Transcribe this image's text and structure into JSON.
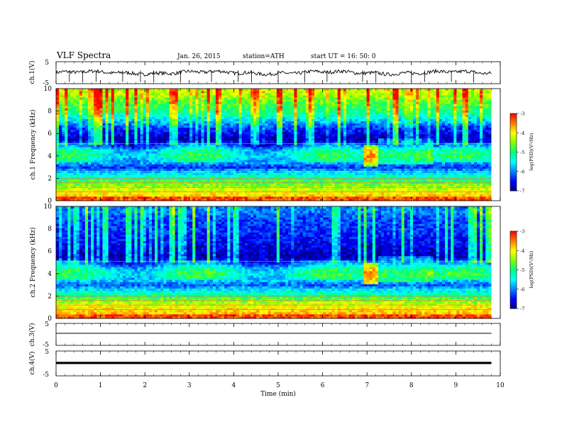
{
  "header": {
    "title": "VLF  Spectra",
    "date": "Jan. 26, 2015",
    "station": "station=ATH",
    "start": "start  UT  =   16: 50: 0"
  },
  "colors": {
    "waveform": "#000000",
    "colormap": [
      "#000080",
      "#0000ff",
      "#0080ff",
      "#00ffff",
      "#00ff80",
      "#80ff00",
      "#ffff00",
      "#ff8000",
      "#ff0000",
      "#ffffff"
    ]
  },
  "chart_data": [
    {
      "type": "line",
      "name": "ch1",
      "ylabel": "ch.1(V)",
      "ylim": [
        -5,
        5
      ],
      "yticklabels": [
        "5",
        "-5"
      ],
      "description_values": "broadband waveform around 0 V with sferic spikes",
      "spikes_t_min": [
        0.3,
        0.6,
        0.9,
        1.5,
        1.9,
        2.2,
        2.8,
        3.5,
        4.1,
        4.4,
        5.0,
        5.6,
        6.1,
        6.9,
        7.2,
        8.0,
        8.3,
        8.9,
        9.4
      ]
    },
    {
      "type": "heatmap",
      "name": "ch1-spectrogram",
      "ylabel": "ch.1  Frequency  (kHz)",
      "ylim": [
        0,
        10
      ],
      "yticks": [
        0,
        2,
        4,
        6,
        8,
        10
      ],
      "colorbar": {
        "label": "log(PSD)(V²/Hz)",
        "ticks": [
          "-3",
          "-4",
          "-5",
          "-6",
          "-7"
        ],
        "range": [
          -7,
          -3
        ]
      },
      "band_profile_khz": [
        {
          "f": 0.0,
          "v": -3.4
        },
        {
          "f": 0.5,
          "v": -3.9
        },
        {
          "f": 1.0,
          "v": -4.2
        },
        {
          "f": 1.5,
          "v": -4.6
        },
        {
          "f": 2.0,
          "v": -5.0
        },
        {
          "f": 2.5,
          "v": -5.6
        },
        {
          "f": 3.0,
          "v": -6.3
        },
        {
          "f": 3.5,
          "v": -5.7
        },
        {
          "f": 4.0,
          "v": -5.4
        },
        {
          "f": 4.5,
          "v": -5.6
        },
        {
          "f": 5.0,
          "v": -6.4
        },
        {
          "f": 5.5,
          "v": -6.8
        },
        {
          "f": 6.0,
          "v": -6.6
        },
        {
          "f": 6.5,
          "v": -6.3
        },
        {
          "f": 7.0,
          "v": -5.8
        },
        {
          "f": 7.5,
          "v": -5.4
        },
        {
          "f": 8.0,
          "v": -5.0
        },
        {
          "f": 8.5,
          "v": -4.8
        },
        {
          "f": 9.0,
          "v": -4.6
        },
        {
          "f": 9.5,
          "v": -4.3
        },
        {
          "f": 10.0,
          "v": -4.2
        }
      ],
      "event_t_min": 7.0,
      "hiss_center_khz": 4.2
    },
    {
      "type": "heatmap",
      "name": "ch2-spectrogram",
      "ylabel": "ch.2  Frequency  (kHz)",
      "ylim": [
        0,
        10
      ],
      "yticks": [
        0,
        2,
        4,
        6,
        8,
        10
      ],
      "colorbar": {
        "label": "log(PSD)(V²/Hz)",
        "ticks": [
          "-3",
          "-4",
          "-5",
          "-6",
          "-7"
        ],
        "range": [
          -7,
          -3
        ]
      },
      "band_profile_khz": [
        {
          "f": 0.0,
          "v": -3.4
        },
        {
          "f": 0.5,
          "v": -3.8
        },
        {
          "f": 1.0,
          "v": -4.0
        },
        {
          "f": 1.5,
          "v": -4.4
        },
        {
          "f": 2.0,
          "v": -4.9
        },
        {
          "f": 2.5,
          "v": -5.5
        },
        {
          "f": 3.0,
          "v": -6.1
        },
        {
          "f": 3.5,
          "v": -5.6
        },
        {
          "f": 4.0,
          "v": -5.3
        },
        {
          "f": 4.5,
          "v": -5.6
        },
        {
          "f": 5.0,
          "v": -6.3
        },
        {
          "f": 5.5,
          "v": -6.8
        },
        {
          "f": 6.0,
          "v": -6.7
        },
        {
          "f": 6.5,
          "v": -6.6
        },
        {
          "f": 7.0,
          "v": -6.5
        },
        {
          "f": 7.5,
          "v": -6.4
        },
        {
          "f": 8.0,
          "v": -6.3
        },
        {
          "f": 8.5,
          "v": -6.3
        },
        {
          "f": 9.0,
          "v": -6.2
        },
        {
          "f": 9.5,
          "v": -6.0
        },
        {
          "f": 10.0,
          "v": -6.0
        }
      ],
      "event_t_min": 7.0,
      "hiss_center_khz": 4.2
    },
    {
      "type": "line",
      "name": "ch3",
      "ylabel": "ch.3(V)",
      "ylim": [
        -5,
        5
      ],
      "yticklabels": [
        "5",
        "-5"
      ],
      "level_v": 0.5
    },
    {
      "type": "line",
      "name": "ch4",
      "ylabel": "ch.4(V)",
      "ylim": [
        -5,
        5
      ],
      "yticklabels": [
        "5",
        "-5"
      ],
      "level_v": 0.2
    }
  ],
  "xaxis": {
    "label": "Time  (min)",
    "ticks": [
      "0",
      "1",
      "2",
      "3",
      "4",
      "5",
      "6",
      "7",
      "8",
      "9",
      "10"
    ],
    "range": [
      0,
      10
    ],
    "data_end_min": 9.8
  }
}
